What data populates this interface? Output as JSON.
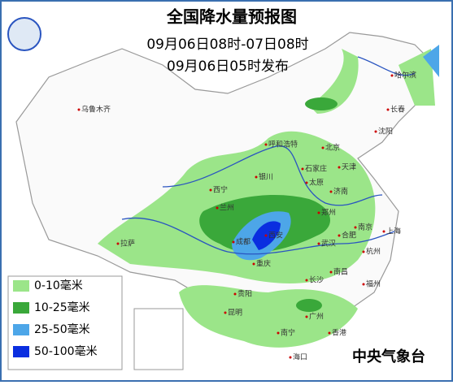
{
  "header": {
    "title": "全国降水量预报图",
    "period": "09月06日08时-07日08时",
    "issued": "09月06日05时发布"
  },
  "legend": {
    "items": [
      "0-10毫米",
      "10-25毫米",
      "25-50毫米",
      "50-100毫米"
    ]
  },
  "cities": [
    "乌鲁木齐",
    "哈尔滨",
    "长春",
    "沈阳",
    "呼和浩特",
    "北京",
    "天津",
    "石家庄",
    "太原",
    "银川",
    "西宁",
    "兰州",
    "济南",
    "郑州",
    "西安",
    "成都",
    "重庆",
    "武汉",
    "合肥",
    "南京",
    "上海",
    "杭州",
    "拉萨",
    "贵阳",
    "长沙",
    "南昌",
    "福州",
    "昆明",
    "南宁",
    "广州",
    "香港",
    "海口"
  ],
  "agency": "中央气象台"
}
